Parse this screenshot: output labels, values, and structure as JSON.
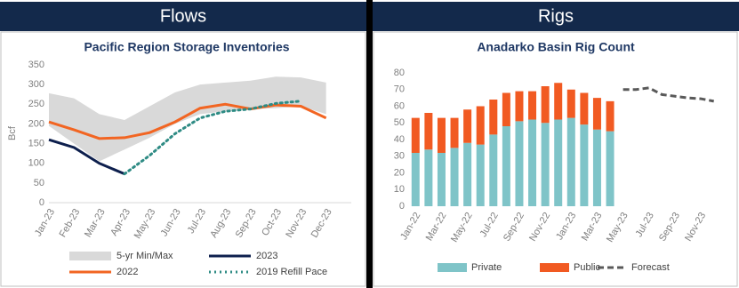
{
  "headers": [
    "Flows",
    "Rigs"
  ],
  "chart_data": [
    {
      "type": "line",
      "title": "Pacific Region Storage Inventories",
      "y_label": "Bcf",
      "categories": [
        "Jan-23",
        "Feb-23",
        "Mar-23",
        "Apr-23",
        "May-23",
        "Jun-23",
        "Jul-23",
        "Aug-23",
        "Sep-23",
        "Oct-23",
        "Nov-23",
        "Dec-23"
      ],
      "ylim": [
        0,
        350
      ],
      "yticks": [
        0,
        50,
        100,
        150,
        200,
        250,
        300,
        350
      ],
      "grid": false,
      "band": {
        "name": "5-yr Min/Max",
        "color": "#d9d9d9",
        "low": [
          195,
          150,
          105,
          135,
          165,
          200,
          225,
          232,
          238,
          240,
          245,
          225
        ],
        "high": [
          278,
          265,
          225,
          210,
          245,
          280,
          300,
          305,
          310,
          320,
          318,
          305
        ]
      },
      "series": [
        {
          "name": "2022",
          "color": "#f26522",
          "style": "solid",
          "values": [
            205,
            185,
            163,
            165,
            178,
            205,
            240,
            250,
            238,
            248,
            245,
            215
          ]
        },
        {
          "name": "2023",
          "color": "#0d1f4d",
          "style": "solid",
          "values": [
            160,
            140,
            100,
            73,
            null,
            null,
            null,
            null,
            null,
            null,
            null,
            null
          ]
        },
        {
          "name": "2019 Refill Pace",
          "color": "#2e8b84",
          "style": "dotted",
          "values": [
            null,
            null,
            null,
            73,
            120,
            175,
            215,
            232,
            238,
            252,
            258,
            null
          ]
        }
      ]
    },
    {
      "type": "bar",
      "title": "Anadarko Basin Rig Count",
      "stacked": true,
      "categories": [
        "Jan-22",
        null,
        "Mar-22",
        null,
        "May-22",
        null,
        "Jul-22",
        null,
        "Sep-22",
        null,
        "Nov-22",
        null,
        "Jan-23",
        null,
        "Mar-23",
        null,
        "May-23",
        null,
        "Jul-23",
        null,
        "Sep-23",
        null,
        "Nov-23",
        null
      ],
      "ylim": [
        0,
        80
      ],
      "yticks": [
        0,
        10,
        20,
        30,
        40,
        50,
        60,
        70,
        80
      ],
      "grid": false,
      "series": [
        {
          "name": "Private",
          "color": "#7fc4c8",
          "style": "bar",
          "values": [
            32,
            34,
            32,
            35,
            38,
            37,
            43,
            48,
            51,
            52,
            50,
            52,
            53,
            49,
            46,
            45,
            null,
            null,
            null,
            null,
            null,
            null,
            null,
            null
          ]
        },
        {
          "name": "Public",
          "color": "#f15a22",
          "style": "bar",
          "values": [
            21,
            22,
            21,
            18,
            20,
            23,
            21,
            20,
            18,
            17,
            22,
            22,
            17,
            19,
            19,
            18,
            null,
            null,
            null,
            null,
            null,
            null,
            null,
            null
          ]
        },
        {
          "name": "Forecast",
          "color": "#595959",
          "style": "dashed",
          "values": [
            null,
            null,
            null,
            null,
            null,
            null,
            null,
            null,
            null,
            null,
            null,
            null,
            null,
            null,
            null,
            null,
            70,
            70,
            71,
            67,
            66,
            65,
            64.5,
            63
          ]
        }
      ]
    }
  ]
}
